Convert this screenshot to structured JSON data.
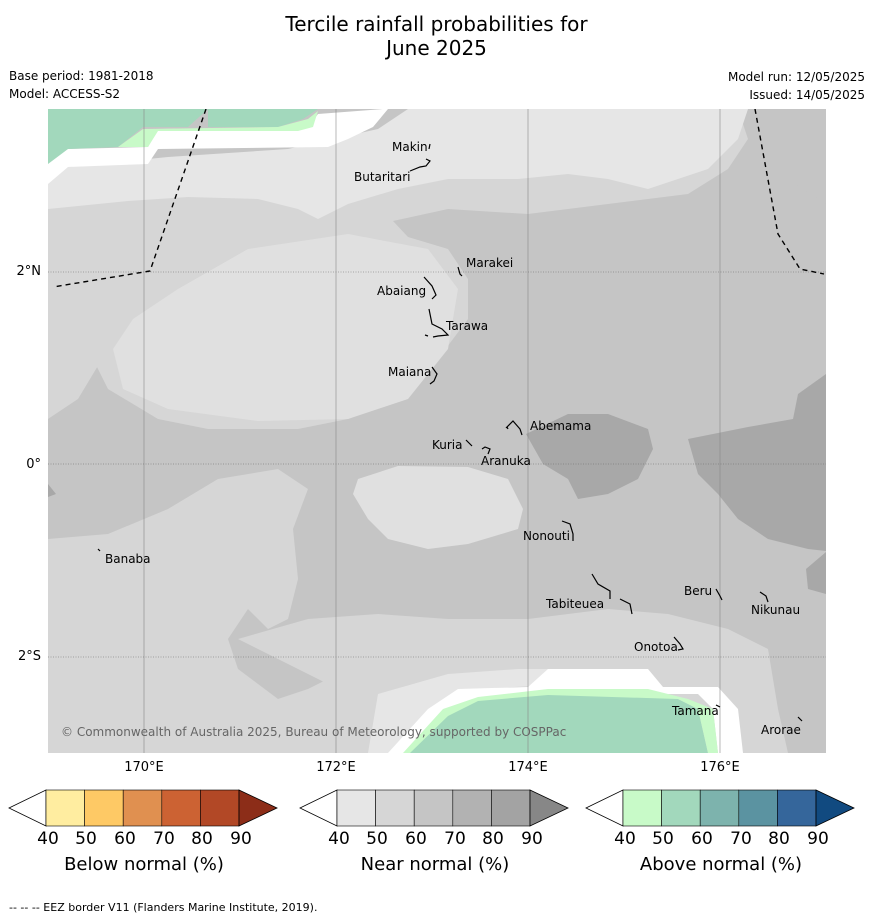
{
  "title_line1": "Tercile rainfall probabilities for",
  "title_line2": "June 2025",
  "meta": {
    "base_period": "Base period: 1981-2018",
    "model": "Model: ACCESS-S2",
    "model_run": "Model run: 12/05/2025",
    "issued": "Issued: 14/05/2025"
  },
  "axes": {
    "lat_labels": [
      "2°N",
      "0°",
      "2°S"
    ],
    "lon_labels": [
      "170°E",
      "172°E",
      "174°E",
      "176°E"
    ]
  },
  "islands": [
    {
      "name": "Makin"
    },
    {
      "name": "Butaritari"
    },
    {
      "name": "Marakei"
    },
    {
      "name": "Abaiang"
    },
    {
      "name": "Tarawa"
    },
    {
      "name": "Maiana"
    },
    {
      "name": "Abemama"
    },
    {
      "name": "Kuria"
    },
    {
      "name": "Aranuka"
    },
    {
      "name": "Nonouti"
    },
    {
      "name": "Banaba"
    },
    {
      "name": "Tabiteuea"
    },
    {
      "name": "Beru"
    },
    {
      "name": "Nikunau"
    },
    {
      "name": "Onotoa"
    },
    {
      "name": "Tamana"
    },
    {
      "name": "Arorae"
    }
  ],
  "copyright": "© Commonwealth of Australia 2025, Bureau of Meteorology, supported by COSPPac",
  "colorbars": [
    {
      "title": "Below normal (%)",
      "ticks": [
        "40",
        "50",
        "60",
        "70",
        "80",
        "90"
      ],
      "colors": [
        "#ffffff",
        "#ffeda0",
        "#fec965",
        "#e09050",
        "#cc6233",
        "#b24826",
        "#8c2d18"
      ]
    },
    {
      "title": "Near normal (%)",
      "ticks": [
        "40",
        "50",
        "60",
        "70",
        "80",
        "90"
      ],
      "colors": [
        "#ffffff",
        "#e6e6e6",
        "#d6d6d6",
        "#c5c5c5",
        "#b2b2b2",
        "#a3a3a3",
        "#878787"
      ]
    },
    {
      "title": "Above normal (%)",
      "ticks": [
        "40",
        "50",
        "60",
        "70",
        "80",
        "90"
      ],
      "colors": [
        "#ffffff",
        "#c8fac8",
        "#a2d8bc",
        "#7db3ad",
        "#5b93a1",
        "#35669b",
        "#114a80"
      ]
    }
  ],
  "footnote": "--  --  -- EEZ border V11 (Flanders Marine Institute, 2019)."
}
